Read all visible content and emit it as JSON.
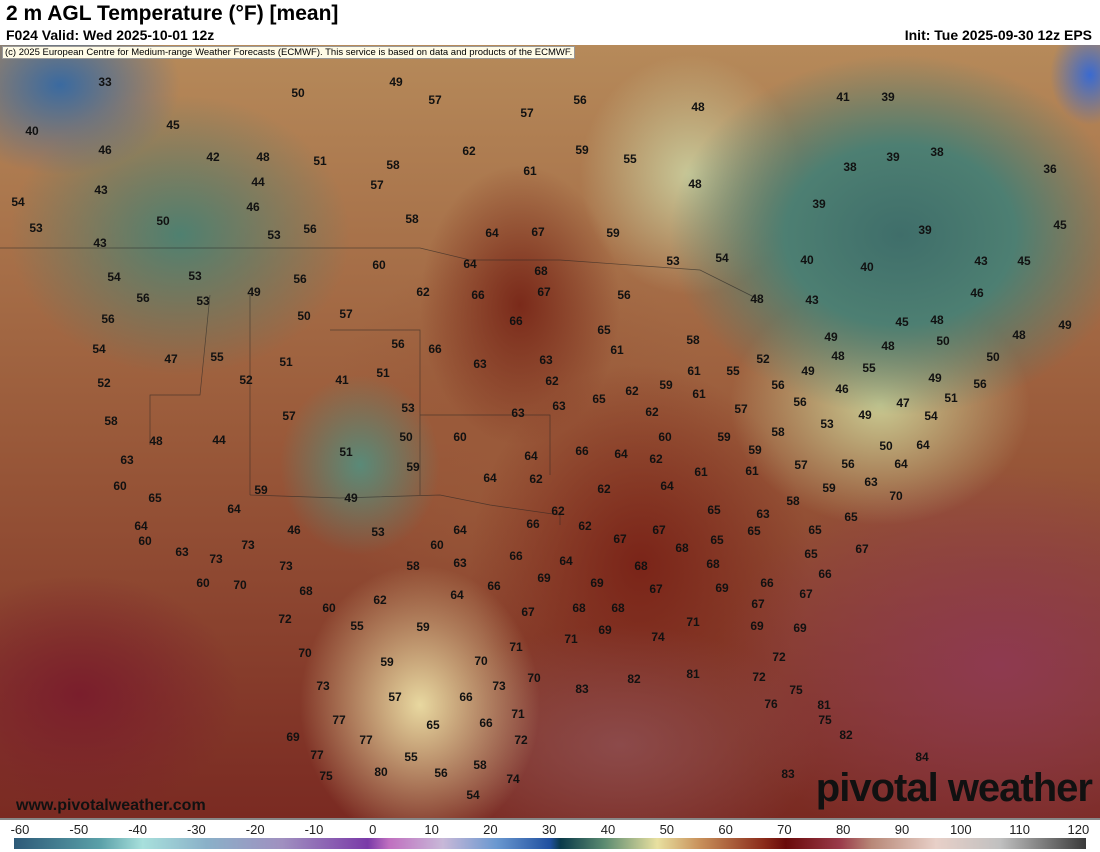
{
  "header": {
    "title": "2 m AGL Temperature (°F) [mean]",
    "valid": "F024 Valid: Wed 2025-10-01 12z",
    "init": "Init: Tue 2025-09-30 12z EPS"
  },
  "copyright": "(c) 2025 European Centre for Medium-range Weather Forecasts (ECMWF). This service is based on data and products of the ECMWF.",
  "footer": {
    "website": "www.pivotalweather.com",
    "logo": "pivotal weather"
  },
  "colorbar": {
    "ticks": [
      "-60",
      "-50",
      "-40",
      "-30",
      "-20",
      "-10",
      "0",
      "10",
      "20",
      "30",
      "40",
      "50",
      "60",
      "70",
      "80",
      "90",
      "100",
      "110",
      "120"
    ]
  },
  "map": {
    "temperature_labels": [
      "33",
      "49",
      "50",
      "57",
      "56",
      "48",
      "41",
      "39",
      "57",
      "45",
      "40",
      "62",
      "59",
      "55",
      "46",
      "42",
      "48",
      "51",
      "58",
      "39",
      "38",
      "38",
      "36",
      "61",
      "43",
      "44",
      "57",
      "48",
      "54",
      "46",
      "58",
      "39",
      "50",
      "53",
      "53",
      "56",
      "64",
      "67",
      "59",
      "39",
      "45",
      "43",
      "60",
      "64",
      "68",
      "53",
      "54",
      "40",
      "40",
      "43",
      "45",
      "54",
      "53",
      "56",
      "62",
      "66",
      "67",
      "56",
      "48",
      "43",
      "46",
      "56",
      "53",
      "49",
      "50",
      "57",
      "56",
      "66",
      "65",
      "45",
      "48",
      "48",
      "49",
      "54",
      "47",
      "55",
      "51",
      "56",
      "66",
      "63",
      "63",
      "61",
      "58",
      "52",
      "49",
      "48",
      "50",
      "50",
      "52",
      "52",
      "41",
      "51",
      "62",
      "65",
      "62",
      "59",
      "61",
      "55",
      "56",
      "49",
      "48",
      "55",
      "46",
      "49",
      "56",
      "58",
      "57",
      "53",
      "63",
      "63",
      "62",
      "61",
      "57",
      "56",
      "47",
      "51",
      "54",
      "49",
      "53",
      "48",
      "44",
      "50",
      "60",
      "60",
      "59",
      "58",
      "50",
      "64",
      "63",
      "51",
      "59",
      "64",
      "66",
      "64",
      "62",
      "59",
      "61",
      "57",
      "56",
      "64",
      "60",
      "65",
      "59",
      "49",
      "64",
      "62",
      "62",
      "61",
      "64",
      "63",
      "59",
      "70",
      "64",
      "46",
      "62",
      "65",
      "63",
      "58",
      "65",
      "64",
      "53",
      "64",
      "66",
      "62",
      "67",
      "65",
      "60",
      "63",
      "73",
      "73",
      "60",
      "67",
      "68",
      "65",
      "65",
      "65",
      "67",
      "73",
      "58",
      "63",
      "66",
      "64",
      "68",
      "68",
      "69",
      "66",
      "60",
      "70",
      "68",
      "62",
      "66",
      "69",
      "67",
      "69",
      "66",
      "64",
      "67",
      "60",
      "72",
      "55",
      "59",
      "67",
      "68",
      "68",
      "67",
      "71",
      "74",
      "69",
      "69",
      "71",
      "69",
      "70",
      "59",
      "70",
      "71",
      "72",
      "81",
      "82",
      "83",
      "73",
      "57",
      "73",
      "70",
      "72",
      "75",
      "76",
      "81",
      "77",
      "65",
      "66",
      "66",
      "71",
      "75",
      "69",
      "77",
      "72",
      "82",
      "77",
      "55",
      "84",
      "75",
      "80",
      "56",
      "58",
      "74",
      "83",
      "54"
    ]
  }
}
